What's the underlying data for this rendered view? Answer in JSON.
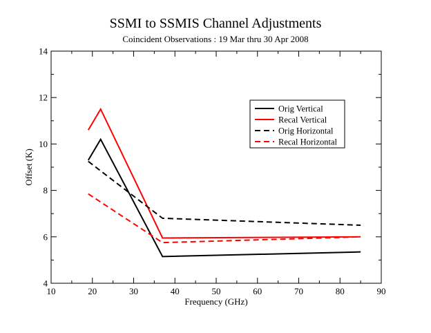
{
  "chart_data": {
    "type": "line",
    "title": "SSMI to SSMIS Channel Adjustments",
    "subtitle": "Coincident Observations : 19 Mar thru 30 Apr 2008",
    "xlabel": "Frequency (GHz)",
    "ylabel": "Offset (K)",
    "xlim": [
      10,
      90
    ],
    "ylim": [
      4,
      14
    ],
    "xticks": [
      10,
      20,
      30,
      40,
      50,
      60,
      70,
      80,
      90
    ],
    "yticks": [
      4,
      6,
      8,
      10,
      12,
      14
    ],
    "grid": false,
    "legend_position": "top-right",
    "series": [
      {
        "name": "Orig Vertical",
        "color": "#000000",
        "dash": "solid",
        "x": [
          19,
          22,
          37,
          85
        ],
        "y": [
          9.3,
          10.2,
          5.15,
          5.35
        ]
      },
      {
        "name": "Recal Vertical",
        "color": "#ff0000",
        "dash": "solid",
        "x": [
          19,
          22,
          37,
          85
        ],
        "y": [
          10.6,
          11.5,
          5.95,
          6.0
        ]
      },
      {
        "name": "Orig Horizontal",
        "color": "#000000",
        "dash": "dashed",
        "x": [
          19,
          37,
          85
        ],
        "y": [
          9.25,
          6.8,
          6.5
        ]
      },
      {
        "name": "Recal Horizontal",
        "color": "#ff0000",
        "dash": "dashed",
        "x": [
          19,
          37,
          85
        ],
        "y": [
          7.85,
          5.75,
          6.0
        ]
      }
    ]
  }
}
